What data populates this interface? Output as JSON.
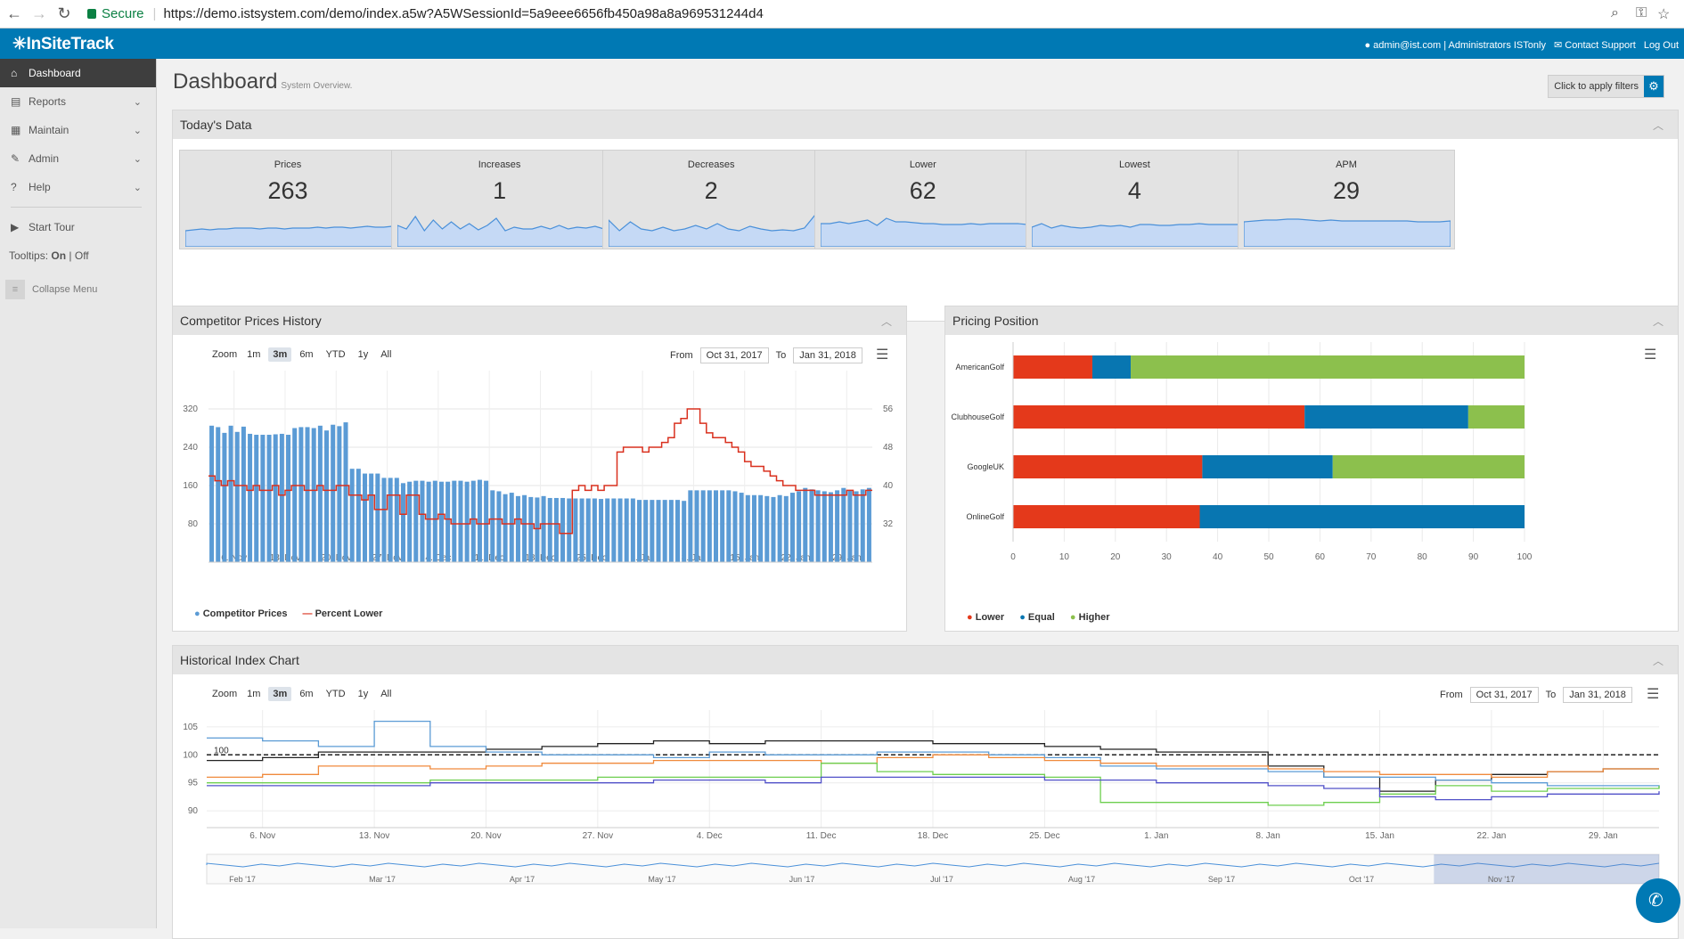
{
  "browser": {
    "secure_label": "Secure",
    "url": "https://demo.istsystem.com/demo/index.a5w?A5WSessionId=5a9eee6656fb450a98a8a969531244d4"
  },
  "header": {
    "logo": "✳InSiteTrack",
    "user": "admin@ist.com",
    "role": "Administrators ISTonly",
    "contact": "Contact Support",
    "logout": "Log Out"
  },
  "sidebar": {
    "items": [
      {
        "label": "Dashboard",
        "icon": "home-icon"
      },
      {
        "label": "Reports",
        "icon": "file-icon"
      },
      {
        "label": "Maintain",
        "icon": "table-icon"
      },
      {
        "label": "Admin",
        "icon": "wrench-icon"
      },
      {
        "label": "Help",
        "icon": "help-icon"
      }
    ],
    "tour": "Start Tour",
    "tooltips_label": "Tooltips:",
    "tooltips_on": "On",
    "tooltips_sep": "|",
    "tooltips_off": "Off",
    "collapse": "Collapse Menu"
  },
  "page": {
    "title": "Dashboard",
    "subtitle": "System Overview.",
    "filter_button": "Click to apply filters"
  },
  "today": {
    "title": "Today's Data",
    "kpis": [
      {
        "label": "Prices",
        "value": "263"
      },
      {
        "label": "Increases",
        "value": "1"
      },
      {
        "label": "Decreases",
        "value": "2"
      },
      {
        "label": "Lower",
        "value": "62"
      },
      {
        "label": "Lowest",
        "value": "4"
      },
      {
        "label": "APM",
        "value": "29"
      }
    ]
  },
  "zoom": {
    "label": "Zoom",
    "options": [
      "1m",
      "3m",
      "6m",
      "YTD",
      "1y",
      "All"
    ],
    "selected": "3m",
    "from_label": "From",
    "to_label": "To",
    "from": "Oct 31, 2017",
    "to": "Jan 31, 2018"
  },
  "competitor": {
    "title": "Competitor Prices History",
    "legend": [
      "Competitor Prices",
      "Percent Lower"
    ],
    "colors": {
      "bars": "#5b9bd5",
      "line": "#d9301e"
    }
  },
  "pricing": {
    "title": "Pricing Position",
    "legend": [
      "Lower",
      "Equal",
      "Higher"
    ],
    "colors": {
      "lower": "#e4391b",
      "equal": "#0876b1",
      "higher": "#8cc04d"
    }
  },
  "historical": {
    "title": "Historical Index Chart",
    "ref_label": "100",
    "navigator_ticks": [
      "Feb '17",
      "Mar '17",
      "Apr '17",
      "May '17",
      "Jun '17",
      "Jul '17",
      "Aug '17",
      "Sep '17",
      "Oct '17",
      "Nov '17"
    ]
  },
  "chart_data": [
    {
      "type": "bar",
      "name": "competitor-prices-history",
      "x_ticks": [
        "6. Nov",
        "13. Nov",
        "20. Nov",
        "27. Nov",
        "4. Dec",
        "11. Dec",
        "18. Dec",
        "25. Dec",
        "1. Jan",
        "8. Jan",
        "15. Jan",
        "22. Jan",
        "29. Jan"
      ],
      "y_left_ticks": [
        80,
        160,
        240,
        320
      ],
      "y_right_ticks": [
        32,
        40,
        48,
        56
      ],
      "ylim_left": [
        0,
        400
      ],
      "ylim_right": [
        24,
        64
      ],
      "series": [
        {
          "name": "Competitor Prices",
          "type": "bar",
          "values": [
            285,
            282,
            270,
            285,
            272,
            283,
            268,
            266,
            266,
            266,
            267,
            268,
            266,
            280,
            282,
            282,
            280,
            285,
            275,
            287,
            284,
            292,
            195,
            195,
            185,
            185,
            185,
            176,
            176,
            176,
            165,
            168,
            170,
            170,
            168,
            170,
            168,
            168,
            170,
            170,
            168,
            170,
            172,
            170,
            150,
            148,
            142,
            145,
            138,
            140,
            136,
            135,
            138,
            134,
            134,
            134,
            133,
            133,
            133,
            133,
            133,
            132,
            133,
            133,
            133,
            133,
            133,
            130,
            130,
            130,
            130,
            130,
            130,
            130,
            128,
            150,
            150,
            150,
            150,
            150,
            150,
            150,
            148,
            145,
            140,
            140,
            140,
            138,
            136,
            140,
            138,
            145,
            148,
            155,
            152,
            150,
            148,
            146,
            150,
            155,
            150,
            148,
            152,
            155
          ]
        },
        {
          "name": "Percent Lower",
          "type": "line",
          "values": [
            42,
            41,
            40,
            41,
            40,
            40,
            39,
            40,
            39,
            39,
            40,
            38,
            39,
            40,
            40,
            39,
            39,
            40,
            39,
            39,
            40,
            40,
            38,
            38,
            37,
            38,
            35,
            35,
            38,
            38,
            34,
            38,
            38,
            34,
            33,
            33,
            34,
            33,
            32,
            32,
            32,
            33,
            32,
            32,
            33,
            33,
            32,
            32,
            33,
            32,
            32,
            31,
            32,
            32,
            32,
            30,
            30,
            39,
            40,
            39,
            40,
            39,
            40,
            40,
            47,
            48,
            48,
            48,
            47,
            48,
            48,
            49,
            50,
            53,
            54,
            56,
            56,
            53,
            51,
            50,
            50,
            49,
            48,
            47,
            45,
            44,
            44,
            43,
            42,
            41,
            40,
            40,
            39,
            39,
            39,
            38,
            38,
            38,
            38,
            38,
            39,
            38,
            38,
            39
          ]
        }
      ]
    },
    {
      "type": "bar",
      "name": "pricing-position",
      "stacked": true,
      "orientation": "horizontal",
      "categories": [
        "AmericanGolf",
        "ClubhouseGolf",
        "GoogleUK",
        "OnlineGolf"
      ],
      "series": [
        {
          "name": "Lower",
          "values": [
            15.5,
            57,
            37,
            36.5
          ]
        },
        {
          "name": "Equal",
          "values": [
            7.5,
            32,
            25.5,
            63.5
          ]
        },
        {
          "name": "Higher",
          "values": [
            77,
            11,
            37.5,
            0
          ]
        }
      ],
      "x_ticks": [
        0,
        10,
        20,
        30,
        40,
        50,
        60,
        70,
        80,
        90,
        100
      ],
      "xlim": [
        0,
        100
      ],
      "legend": "bottom-left"
    },
    {
      "type": "line",
      "name": "historical-index",
      "x_ticks": [
        "6. Nov",
        "13. Nov",
        "20. Nov",
        "27. Nov",
        "4. Dec",
        "11. Dec",
        "18. Dec",
        "25. Dec",
        "1. Jan",
        "8. Jan",
        "15. Jan",
        "22. Jan",
        "29. Jan"
      ],
      "y_ticks": [
        90,
        95,
        100,
        105
      ],
      "ylim": [
        87,
        108
      ],
      "reference_line": 100,
      "series": [
        {
          "color": "#222222",
          "values": [
            99,
            99.5,
            100.5,
            100.5,
            100.5,
            101,
            101.5,
            102,
            102.5,
            102,
            102.5,
            102.5,
            102.5,
            102,
            102,
            101.5,
            101,
            100.5,
            100.5,
            98,
            96,
            93.5,
            95.5,
            96.5,
            97,
            97.5,
            97.5
          ]
        },
        {
          "color": "#5b9bd5",
          "values": [
            103,
            102.5,
            101.5,
            106,
            101.5,
            100.5,
            100,
            100,
            99.5,
            100.5,
            100,
            100,
            100.5,
            100.5,
            100,
            99.5,
            98,
            97.5,
            97.5,
            97,
            96,
            96,
            95.5,
            95,
            94.5,
            94.5,
            94
          ]
        },
        {
          "color": "#f08a3c",
          "values": [
            96,
            96.5,
            98,
            98,
            97.5,
            98,
            98.5,
            98.5,
            99,
            99,
            99,
            98.5,
            99.5,
            100,
            99.5,
            99,
            98.5,
            98,
            98,
            97.5,
            97,
            96.5,
            96.5,
            96,
            97,
            97.5,
            97.5
          ]
        },
        {
          "color": "#6ecf4f",
          "values": [
            95,
            95,
            95,
            95,
            95.5,
            95.5,
            95.5,
            96,
            96,
            96,
            96,
            98.5,
            97,
            96.5,
            96.5,
            96,
            91.5,
            91.5,
            91.5,
            91,
            91.5,
            93,
            94.5,
            93.5,
            94,
            94,
            94.5
          ]
        },
        {
          "color": "#5050c8",
          "values": [
            94.5,
            94.5,
            94.5,
            94.5,
            95,
            95,
            95,
            95,
            95.5,
            95.5,
            95,
            96,
            96,
            96,
            96,
            95.5,
            95.5,
            95,
            95,
            94.5,
            94,
            92.5,
            92,
            92.5,
            93,
            93,
            93.5
          ]
        }
      ]
    }
  ]
}
